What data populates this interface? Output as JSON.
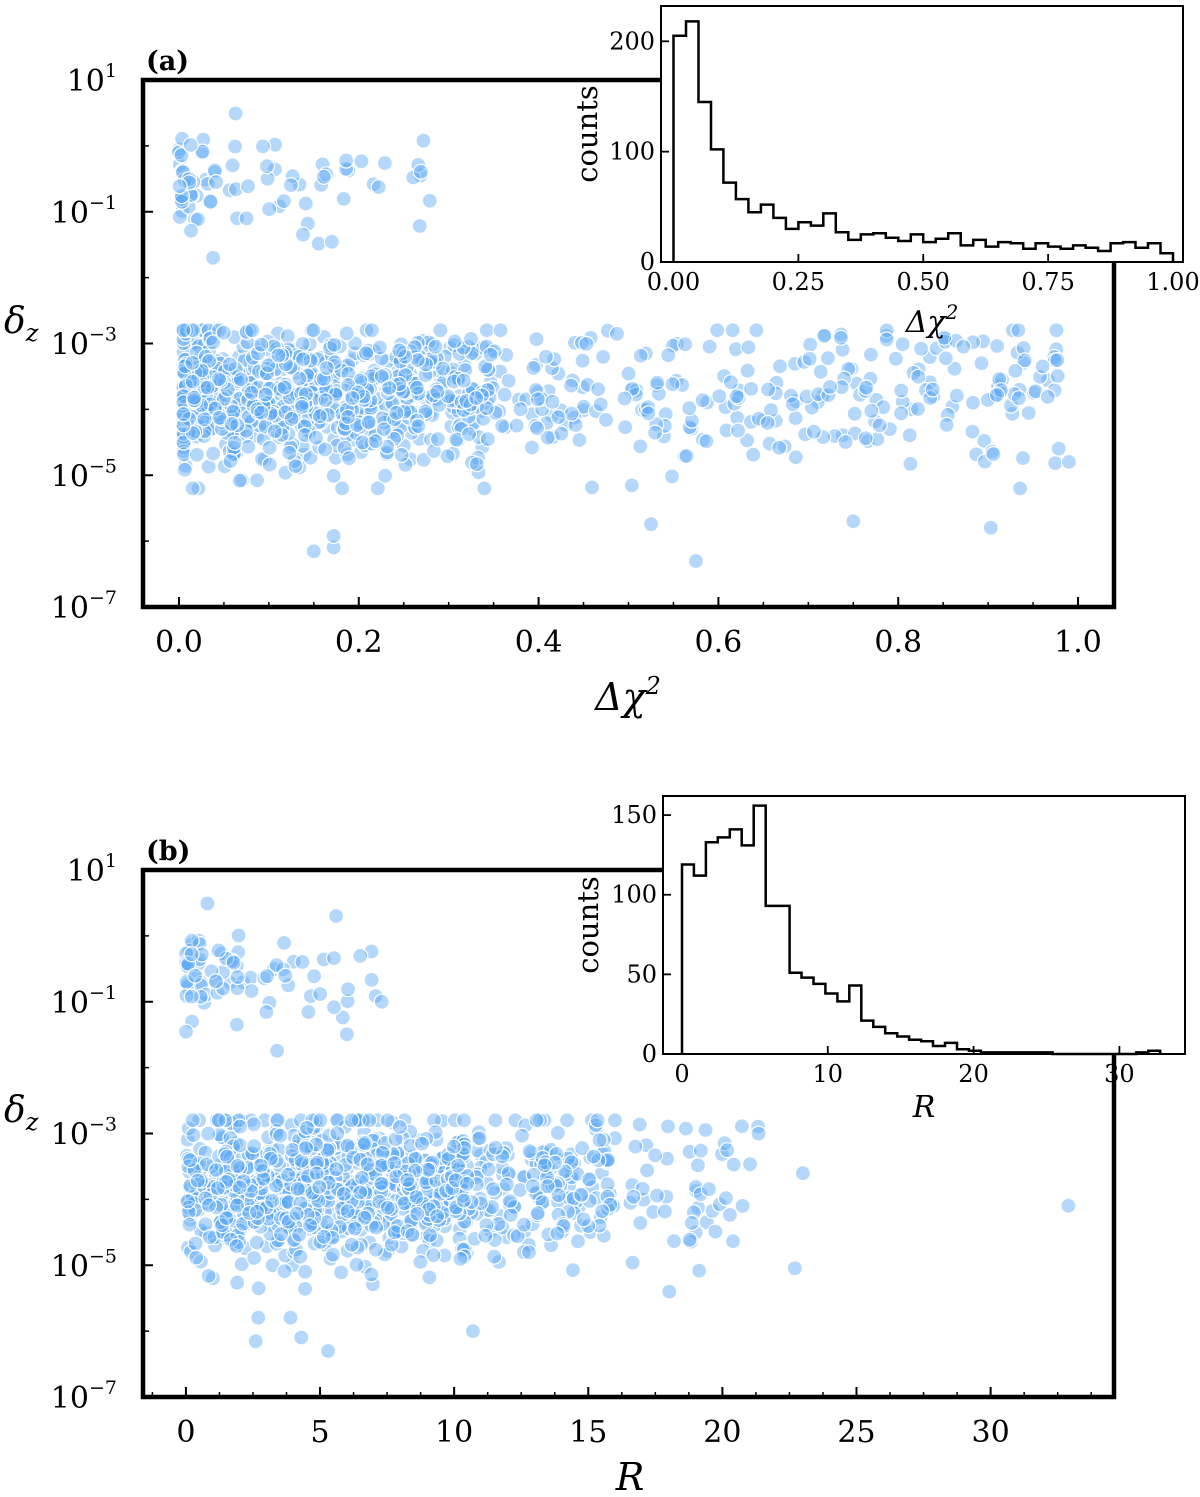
{
  "figure": {
    "colors": {
      "point": "#5aa9f5",
      "point_edge": "#ffffff",
      "axis": "#000000"
    }
  },
  "chart_data": [
    {
      "id": "a",
      "type": "scatter",
      "panel_label": "(a)",
      "xlabel": "Δχ²",
      "ylabel": "δz",
      "xlim": [
        -0.04,
        1.04
      ],
      "xticks": [
        0.0,
        0.2,
        0.4,
        0.6,
        0.8,
        1.0
      ],
      "xtick_labels": [
        "0.0",
        "0.2",
        "0.4",
        "0.6",
        "0.8",
        "1.0"
      ],
      "y_scale": "log",
      "ylim_exp": [
        -7,
        1
      ],
      "yticks_exp": [
        1,
        -1,
        -3,
        -5,
        -7
      ],
      "ytick_labels": [
        "10^1",
        "10^-1",
        "10^-3",
        "10^-5",
        "10^-7"
      ],
      "grid": false,
      "scatter_model": {
        "x_range": [
          0.0,
          1.0
        ],
        "x_distribution": "concentrated near 0, tail to 1",
        "main_cluster_log10_y": [
          -5.2,
          -2.8
        ],
        "main_cluster_center_log10_y": -3.8,
        "outlier_cluster_x": [
          0.0,
          0.28
        ],
        "outlier_cluster_log10_y": [
          -1.7,
          0.4
        ]
      },
      "outliers": [
        {
          "x": 0.15,
          "y": 7e-07
        },
        {
          "x": 0.172,
          "y": 8e-07
        },
        {
          "x": 0.172,
          "y": 1.2e-06
        },
        {
          "x": 0.575,
          "y": 5e-07
        },
        {
          "x": 0.525,
          "y": 1.8e-06
        },
        {
          "x": 0.75,
          "y": 2e-06
        },
        {
          "x": 0.903,
          "y": 1.6e-06
        },
        {
          "x": 0.038,
          "y": 0.02
        },
        {
          "x": 0.17,
          "y": 0.035
        },
        {
          "x": 0.138,
          "y": 0.045
        },
        {
          "x": 0.272,
          "y": 1.2
        },
        {
          "x": 0.186,
          "y": 0.6
        },
        {
          "x": 0.063,
          "y": 3.1
        }
      ],
      "inset": {
        "type": "histogram",
        "xlabel": "Δχ²",
        "ylabel": "counts",
        "xlim": [
          -0.025,
          1.02
        ],
        "ylim": [
          0,
          232
        ],
        "xticks": [
          0.0,
          0.25,
          0.5,
          0.75,
          1.0
        ],
        "xtick_labels": [
          "0.00",
          "0.25",
          "0.50",
          "0.75",
          "1.00"
        ],
        "yticks": [
          0,
          100,
          200
        ],
        "ytick_labels": [
          "0",
          "100",
          "200"
        ],
        "bin_edges_start": 0.0,
        "bin_width": 0.025,
        "counts": [
          205,
          218,
          145,
          102,
          72,
          57,
          45,
          52,
          40,
          30,
          36,
          33,
          44,
          27,
          20,
          25,
          26,
          22,
          19,
          25,
          18,
          21,
          26,
          15,
          20,
          14,
          18,
          17,
          12,
          17,
          14,
          12,
          15,
          13,
          10,
          17,
          18,
          13,
          17,
          8
        ]
      }
    },
    {
      "id": "b",
      "type": "scatter",
      "panel_label": "(b)",
      "xlabel": "R",
      "ylabel": "δz",
      "xlim": [
        -1.6,
        34.6
      ],
      "xticks": [
        0,
        5,
        10,
        15,
        20,
        25,
        30
      ],
      "xtick_labels": [
        "0",
        "5",
        "10",
        "15",
        "20",
        "25",
        "30"
      ],
      "y_scale": "log",
      "ylim_exp": [
        -7,
        1
      ],
      "yticks_exp": [
        1,
        -1,
        -3,
        -5,
        -7
      ],
      "ytick_labels": [
        "10^1",
        "10^-1",
        "10^-3",
        "10^-5",
        "10^-7"
      ],
      "grid": false,
      "scatter_model": {
        "x_range": [
          0,
          23
        ],
        "x_distribution": "concentrated 0-10, tail to 23",
        "main_cluster_log10_y": [
          -5.4,
          -2.8
        ],
        "main_cluster_center_log10_y": -3.8,
        "outlier_cluster_x": [
          0,
          7.3
        ],
        "outlier_cluster_log10_y": [
          -1.8,
          0.4
        ]
      },
      "outliers": [
        {
          "x": 2.6,
          "y": 7e-07
        },
        {
          "x": 4.3,
          "y": 8e-07
        },
        {
          "x": 5.3,
          "y": 5e-07
        },
        {
          "x": 10.7,
          "y": 1e-06
        },
        {
          "x": 2.7,
          "y": 1.6e-06
        },
        {
          "x": 3.9,
          "y": 1.6e-06
        },
        {
          "x": 22.7,
          "y": 9e-06
        },
        {
          "x": 32.9,
          "y": 8e-05
        },
        {
          "x": 23.0,
          "y": 0.00025
        },
        {
          "x": 19.2,
          "y": 0.00055
        },
        {
          "x": 7.3,
          "y": 0.1
        },
        {
          "x": 1.9,
          "y": 0.045
        },
        {
          "x": 6.0,
          "y": 0.032
        },
        {
          "x": 3.4,
          "y": 0.018
        },
        {
          "x": 3.0,
          "y": 0.07
        },
        {
          "x": 5.6,
          "y": 2.0
        },
        {
          "x": 0.8,
          "y": 3.1
        }
      ],
      "inset": {
        "type": "histogram",
        "xlabel": "R",
        "ylabel": "counts",
        "xlim": [
          -1.3,
          34.5
        ],
        "ylim": [
          0,
          162
        ],
        "xticks": [
          0,
          10,
          20,
          30
        ],
        "xtick_labels": [
          "0",
          "10",
          "20",
          "30"
        ],
        "yticks": [
          0,
          50,
          100,
          150
        ],
        "ytick_labels": [
          "0",
          "50",
          "100",
          "150"
        ],
        "bin_edges_start": 0.0,
        "bin_width": 0.82,
        "counts": [
          119,
          112,
          133,
          136,
          141,
          131,
          156,
          93,
          93,
          51,
          48,
          44,
          38,
          33,
          43,
          21,
          17,
          13,
          11,
          9,
          8,
          5,
          7,
          3,
          2,
          1,
          1,
          1,
          1,
          1,
          1,
          0,
          0,
          0,
          0,
          0,
          0,
          0,
          1,
          2
        ]
      }
    }
  ]
}
